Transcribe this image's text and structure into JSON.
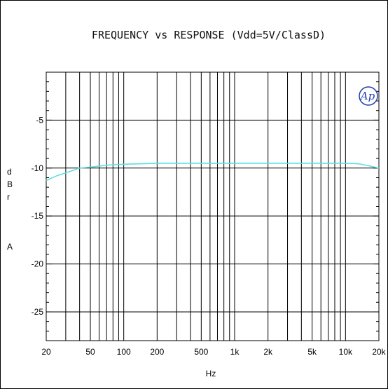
{
  "chart_data": {
    "type": "line",
    "title": "FREQUENCY vs  RESPONSE (Vdd=5V/ClassD)",
    "xlabel": "Hz",
    "ylabel_letters": [
      "d",
      "B",
      "r",
      "",
      "A"
    ],
    "xscale": "log",
    "xlim": [
      20,
      20000
    ],
    "ylim": [
      -28,
      0
    ],
    "grid": true,
    "x_tick_values": [
      20,
      50,
      100,
      200,
      500,
      1000,
      2000,
      5000,
      10000,
      20000
    ],
    "x_tick_labels": [
      "20",
      "50",
      "100",
      "200",
      "500",
      "1k",
      "2k",
      "5k",
      "10k",
      "20k"
    ],
    "y_tick_values": [
      -5,
      -10,
      -15,
      -20,
      -25
    ],
    "y_tick_labels": [
      "-5",
      "-10",
      "-15",
      "-20",
      "-25"
    ],
    "logo_text": "Ap",
    "series": [
      {
        "color": "#5ee0e0",
        "x": [
          20,
          25,
          30,
          40,
          50,
          70,
          100,
          150,
          200,
          500,
          1000,
          2000,
          5000,
          10000,
          13000,
          16000,
          20000
        ],
        "y": [
          -11.3,
          -10.8,
          -10.5,
          -10.0,
          -9.9,
          -9.7,
          -9.6,
          -9.55,
          -9.5,
          -9.5,
          -9.5,
          -9.5,
          -9.5,
          -9.5,
          -9.55,
          -9.75,
          -10.0
        ]
      }
    ]
  }
}
